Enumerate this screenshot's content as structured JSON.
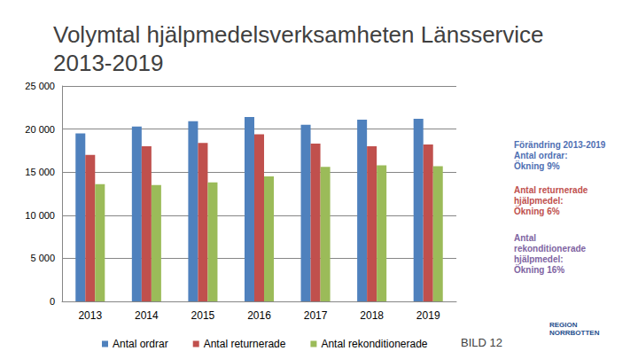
{
  "chart_data": {
    "type": "bar",
    "title": "Volymtal hjälpmedelsverksamheten Länsservice 2013-2019",
    "categories": [
      "2013",
      "2014",
      "2015",
      "2016",
      "2017",
      "2018",
      "2019"
    ],
    "series": [
      {
        "name": "Antal ordrar",
        "color": "#4f81bd",
        "values": [
          19500,
          20300,
          20900,
          21400,
          20500,
          21100,
          21200
        ]
      },
      {
        "name": "Antal returnerade",
        "color": "#c0504d",
        "values": [
          17000,
          18000,
          18400,
          19400,
          18300,
          18000,
          18200
        ]
      },
      {
        "name": "Antal rekonditionerade",
        "color": "#9bbb59",
        "values": [
          13600,
          13500,
          13800,
          14500,
          15600,
          15800,
          15700
        ]
      }
    ],
    "ylim": [
      0,
      25000
    ],
    "yticks": [
      0,
      {
        "value": 5000,
        "label": "5 000"
      },
      {
        "value": 10000,
        "label": "10 000"
      },
      {
        "value": 15000,
        "label": "15 000"
      },
      {
        "value": 20000,
        "label": "20 000"
      },
      {
        "value": 25000,
        "label": "25 000"
      }
    ],
    "grid": true,
    "legend": "bottom",
    "annotations": [
      {
        "lines": [
          "Förändring 2013-2019",
          "Antal ordrar:",
          "Ökning 9%"
        ],
        "color": "#4f6fb3"
      },
      {
        "lines": [
          "Antal returnerade",
          "hjälpmedel:",
          "Ökning 6%"
        ],
        "color": "#c0504d"
      },
      {
        "lines": [
          "Antal",
          "rekonditionerade",
          "hjälpmedel:",
          "Ökning 16%"
        ],
        "color": "#8064a2"
      }
    ],
    "footer": "BILD 12",
    "logo_text": [
      "REGION",
      "NORRBOTTEN"
    ]
  }
}
